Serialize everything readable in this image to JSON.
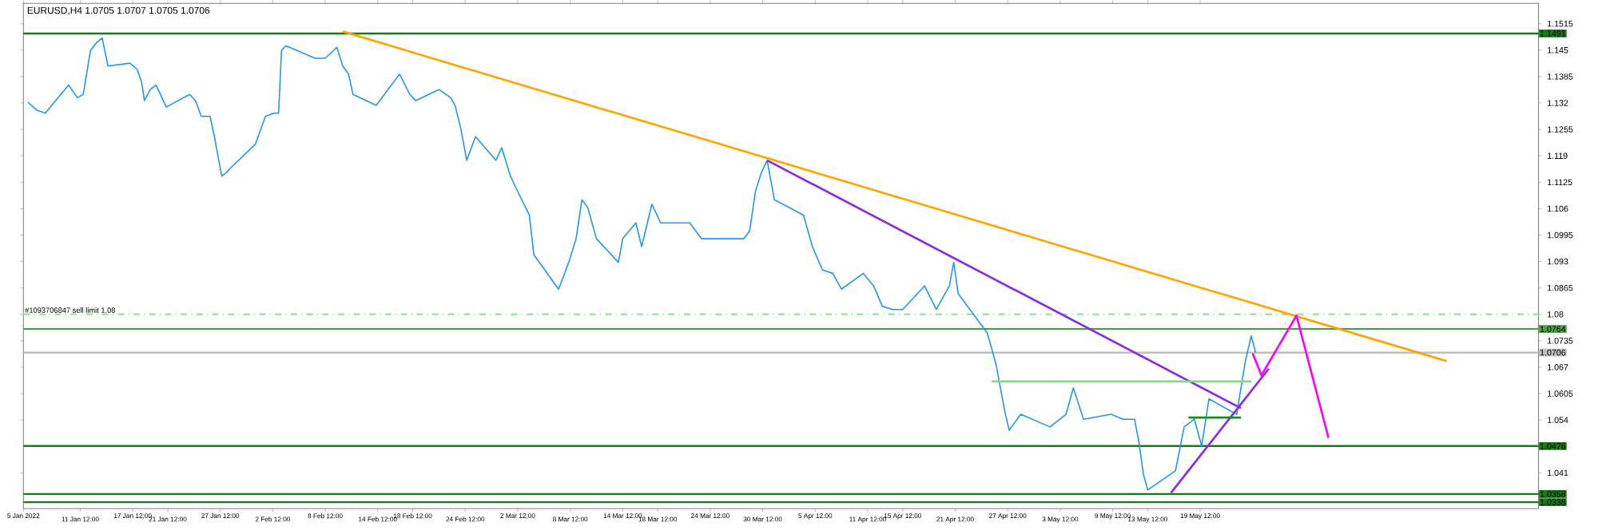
{
  "chart_data": {
    "type": "line",
    "title": "EURUSD,H4 1.0705 1.0707 1.0705 1.0706",
    "xlim": [
      "2022-01-05T00:00",
      "2022-06-27T04:00"
    ],
    "ylim": [
      1.0322,
      1.1565
    ],
    "xticks": [
      {
        "value": "2022-01-05T00:00",
        "label": "5 Jan 2022"
      },
      {
        "value": "2022-01-11T12:00",
        "label": "11 Jan 12:00"
      },
      {
        "value": "2022-01-17T12:00",
        "label": "17 Jan 12:00"
      },
      {
        "value": "2022-01-21T12:00",
        "label": "21 Jan 12:00"
      },
      {
        "value": "2022-01-27T12:00",
        "label": "27 Jan 12:00"
      },
      {
        "value": "2022-02-02T12:00",
        "label": "2 Feb 12:00"
      },
      {
        "value": "2022-02-08T12:00",
        "label": "8 Feb 12:00"
      },
      {
        "value": "2022-02-14T12:00",
        "label": "14 Feb 12:00"
      },
      {
        "value": "2022-02-18T12:00",
        "label": "18 Feb 12:00"
      },
      {
        "value": "2022-02-24T12:00",
        "label": "24 Feb 12:00"
      },
      {
        "value": "2022-03-02T12:00",
        "label": "2 Mar 12:00"
      },
      {
        "value": "2022-03-08T12:00",
        "label": "8 Mar 12:00"
      },
      {
        "value": "2022-03-14T12:00",
        "label": "14 Mar 12:00"
      },
      {
        "value": "2022-03-18T12:00",
        "label": "18 Mar 12:00"
      },
      {
        "value": "2022-03-24T12:00",
        "label": "24 Mar 12:00"
      },
      {
        "value": "2022-03-30T12:00",
        "label": "30 Mar 12:00"
      },
      {
        "value": "2022-04-05T12:00",
        "label": "5 Apr 12:00"
      },
      {
        "value": "2022-04-11T12:00",
        "label": "11 Apr 12:00"
      },
      {
        "value": "2022-04-15T12:00",
        "label": "15 Apr 12:00"
      },
      {
        "value": "2022-04-21T12:00",
        "label": "21 Apr 12:00"
      },
      {
        "value": "2022-04-27T12:00",
        "label": "27 Apr 12:00"
      },
      {
        "value": "2022-05-03T12:00",
        "label": "3 May 12:00"
      },
      {
        "value": "2022-05-09T12:00",
        "label": "9 May 12:00"
      },
      {
        "value": "2022-05-13T12:00",
        "label": "13 May 12:00"
      },
      {
        "value": "2022-05-19T12:00",
        "label": "19 May 12:00"
      }
    ],
    "yticks": [
      1.1515,
      1.145,
      1.1385,
      1.132,
      1.1255,
      1.119,
      1.1125,
      1.106,
      1.0995,
      1.093,
      1.0865,
      1.08,
      1.0735,
      1.067,
      1.0605,
      1.054,
      1.041
    ],
    "series": [
      {
        "color": "#2196f3",
        "x": [
          "2022-01-05T12:00",
          "2022-01-06T12:00",
          "2022-01-07T12:00",
          "2022-01-10T04:00",
          "2022-01-11T04:00",
          "2022-01-11T20:00",
          "2022-01-12T16:00",
          "2022-01-13T08:00",
          "2022-01-14T00:00",
          "2022-01-14T16:00",
          "2022-01-17T04:00",
          "2022-01-18T00:00",
          "2022-01-18T12:00",
          "2022-01-18T20:00",
          "2022-01-19T12:00",
          "2022-01-20T04:00",
          "2022-01-20T20:00",
          "2022-01-21T08:00",
          "2022-01-24T00:00",
          "2022-01-24T16:00",
          "2022-01-25T08:00",
          "2022-01-26T08:00",
          "2022-01-26T20:00",
          "2022-01-27T16:00",
          "2022-01-28T04:00",
          "2022-01-28T16:00",
          "2022-01-31T12:00",
          "2022-02-01T16:00",
          "2022-02-02T16:00",
          "2022-02-03T04:00",
          "2022-02-03T12:00",
          "2022-02-04T00:00",
          "2022-02-07T08:00",
          "2022-02-08T12:00",
          "2022-02-09T20:00",
          "2022-02-10T12:00",
          "2022-02-11T04:00",
          "2022-02-11T16:00",
          "2022-02-14T08:00",
          "2022-02-15T16:00",
          "2022-02-17T00:00",
          "2022-02-18T04:00",
          "2022-02-18T20:00",
          "2022-02-21T12:00",
          "2022-02-22T20:00",
          "2022-02-23T08:00",
          "2022-02-24T00:00",
          "2022-02-24T16:00",
          "2022-02-25T16:00",
          "2022-02-28T00:00",
          "2022-02-28T16:00",
          "2022-03-01T16:00",
          "2022-03-02T12:00",
          "2022-03-03T20:00",
          "2022-03-04T08:00",
          "2022-03-07T04:00",
          "2022-03-08T08:00",
          "2022-03-09T04:00",
          "2022-03-09T20:00",
          "2022-03-10T12:00",
          "2022-03-11T12:00",
          "2022-03-14T00:00",
          "2022-03-14T12:00",
          "2022-03-16T00:00",
          "2022-03-16T16:00",
          "2022-03-17T20:00",
          "2022-03-18T20:00",
          "2022-03-22T04:00",
          "2022-03-23T12:00",
          "2022-03-25T04:00",
          "2022-03-28T08:00",
          "2022-03-29T00:00",
          "2022-03-29T16:00",
          "2022-03-30T08:00",
          "2022-03-31T00:00",
          "2022-03-31T20:00",
          "2022-04-04T04:00",
          "2022-04-05T04:00",
          "2022-04-06T08:00",
          "2022-04-07T12:00",
          "2022-04-08T12:00",
          "2022-04-11T00:00",
          "2022-04-12T04:00",
          "2022-04-13T04:00",
          "2022-04-14T08:00",
          "2022-04-15T12:00",
          "2022-04-18T00:00",
          "2022-04-19T08:00",
          "2022-04-20T20:00",
          "2022-04-21T08:00",
          "2022-04-21T20:00",
          "2022-04-25T04:00",
          "2022-04-26T04:00",
          "2022-04-27T04:00",
          "2022-04-27T16:00",
          "2022-04-29T00:00",
          "2022-05-02T08:00",
          "2022-05-04T04:00",
          "2022-05-05T00:00",
          "2022-05-06T04:00",
          "2022-05-09T08:00",
          "2022-05-10T16:00",
          "2022-05-12T00:00",
          "2022-05-12T12:00",
          "2022-05-13T00:00",
          "2022-05-13T12:00",
          "2022-05-16T16:00",
          "2022-05-17T16:00",
          "2022-05-18T20:00",
          "2022-05-19T16:00",
          "2022-05-20T12:00",
          "2022-05-23T16:00",
          "2022-05-24T16:00",
          "2022-05-25T08:00",
          "2022-05-25T20:00"
        ],
        "values": [
          1.1322,
          1.1303,
          1.1295,
          1.1364,
          1.1333,
          1.1341,
          1.1449,
          1.1468,
          1.148,
          1.1411,
          1.1418,
          1.1403,
          1.1372,
          1.1326,
          1.1353,
          1.1364,
          1.1333,
          1.131,
          1.1341,
          1.1326,
          1.1287,
          1.1287,
          1.1237,
          1.114,
          1.1148,
          1.116,
          1.1218,
          1.1287,
          1.1295,
          1.1295,
          1.1449,
          1.1461,
          1.143,
          1.143,
          1.1457,
          1.1411,
          1.1391,
          1.1341,
          1.1314,
          1.1353,
          1.1391,
          1.1341,
          1.1326,
          1.1353,
          1.1333,
          1.1314,
          1.1256,
          1.1179,
          1.1237,
          1.1179,
          1.121,
          1.114,
          1.1102,
          1.1044,
          1.0947,
          1.0862,
          1.0928,
          1.0986,
          1.1082,
          1.1063,
          1.0986,
          1.0928,
          1.0986,
          1.1025,
          1.0967,
          1.1071,
          1.1025,
          1.1025,
          1.0986,
          1.0986,
          1.0986,
          1.1005,
          1.1102,
          1.1148,
          1.1179,
          1.1082,
          1.1044,
          1.0967,
          1.0909,
          1.0901,
          1.0862,
          1.0901,
          1.087,
          1.082,
          1.0812,
          1.0812,
          1.087,
          1.0812,
          1.087,
          1.0928,
          1.0851,
          1.0754,
          1.0677,
          1.0561,
          1.0515,
          1.0554,
          1.0523,
          1.0554,
          1.0619,
          1.0542,
          1.0554,
          1.0542,
          1.0542,
          1.0484,
          1.0407,
          1.0368,
          1.0415,
          1.0523,
          1.0542,
          1.0476,
          1.0592,
          1.0554,
          1.0685,
          1.0747,
          1.0706
        ]
      },
      {
        "color": "#ffa500",
        "x": [
          "2022-02-10T12:00",
          "2022-06-16T16:00"
        ],
        "values": [
          1.1496,
          1.0685
        ]
      },
      {
        "color": "#8a2be2",
        "x": [
          "2022-03-31T00:00",
          "2022-05-24T04:00"
        ],
        "values": [
          1.1179,
          1.0569
        ]
      },
      {
        "color": "#8a2be2",
        "x": [
          "2022-05-16T04:00",
          "2022-05-27T08:00"
        ],
        "values": [
          1.0361,
          1.0666
        ]
      },
      {
        "color": "#ff00ff",
        "x": [
          "2022-05-25T12:00",
          "2022-05-26T12:00",
          "2022-05-30T12:00",
          "2022-06-03T04:00"
        ],
        "values": [
          1.0704,
          1.065,
          1.0797,
          1.0496
        ]
      },
      {
        "color": "#8fd18f",
        "x": [
          "2022-04-25T16:00",
          "2022-05-25T08:00"
        ],
        "values": [
          1.0635,
          1.0635
        ]
      },
      {
        "color": "#1a8a1a",
        "x": [
          "2022-05-18T04:00",
          "2022-05-24T04:00"
        ],
        "values": [
          1.0546,
          1.0546
        ]
      }
    ],
    "ref_lines": [
      {
        "axis": "y",
        "value": 1.1491,
        "label": "1.1491",
        "color": "#1a7a1a",
        "line_style": "solid"
      },
      {
        "axis": "y",
        "value": 1.08,
        "label": "#1093706847 sell limit 1.08",
        "color": "#a8e0a8",
        "line_style": "dotted"
      },
      {
        "axis": "y",
        "value": 1.0764,
        "label": "1.0764",
        "color": "#4ea04e",
        "line_style": "solid"
      },
      {
        "axis": "y",
        "value": 1.0706,
        "label": "1.0706",
        "color": "#c0c0c0",
        "line_style": "solid"
      },
      {
        "axis": "y",
        "value": 1.0476,
        "label": "1.0476",
        "color": "#1a7a1a",
        "line_style": "solid"
      },
      {
        "axis": "y",
        "value": 1.0358,
        "label": "1.0358",
        "color": "#1a7a1a",
        "line_style": "solid"
      },
      {
        "axis": "y",
        "value": 1.0338,
        "label": "1.0338",
        "color": "#1a7a1a",
        "line_style": "solid"
      }
    ]
  }
}
